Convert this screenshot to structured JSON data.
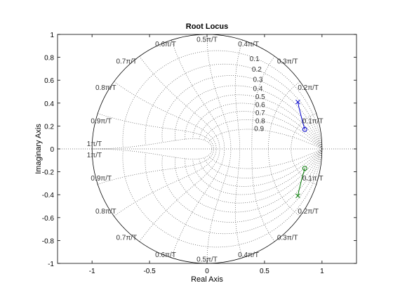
{
  "chart_data": {
    "type": "root-locus",
    "title": "Root Locus",
    "xlabel": "Real Axis",
    "ylabel": "Imaginary Axis",
    "xlim": [
      -1.3,
      1.3
    ],
    "ylim": [
      -1,
      1
    ],
    "xticks": [
      -1,
      -0.5,
      0,
      0.5,
      1
    ],
    "xtick_labels": [
      "-1",
      "-0.5",
      "0",
      "0.5",
      "1"
    ],
    "yticks": [
      -1,
      -0.8,
      -0.6,
      -0.4,
      -0.2,
      0,
      0.2,
      0.4,
      0.6,
      0.8,
      1
    ],
    "ytick_labels": [
      "-1",
      "-0.8",
      "-0.6",
      "-0.4",
      "-0.2",
      "0",
      "0.2",
      "0.4",
      "0.6",
      "0.8",
      "1"
    ],
    "grid": "zgrid",
    "zeta_values": [
      0.1,
      0.2,
      0.3,
      0.4,
      0.5,
      0.6,
      0.7,
      0.8,
      0.9
    ],
    "zeta_labels": [
      "0.1",
      "0.2",
      "0.3",
      "0.4",
      "0.5",
      "0.6",
      "0.7",
      "0.8",
      "0.9"
    ],
    "wn_labels_upper": [
      "0.1π/T",
      "0.2π/T",
      "0.3π/T",
      "0.4π/T",
      "0.5π/T",
      "0.6π/T",
      "0.7π/T",
      "0.8π/T",
      "0.9π/T",
      "1π/T"
    ],
    "wn_labels_lower": [
      "0.1π/T",
      "0.2π/T",
      "0.3π/T",
      "0.4π/T",
      "0.5π/T",
      "0.6π/T",
      "0.7π/T",
      "0.8π/T",
      "0.9π/T",
      "1π/T"
    ],
    "colors": {
      "branch_upper": "#0000cc",
      "branch_lower": "#007700",
      "grid": "#555555",
      "unit_circle": "#000000"
    },
    "poles": [
      [
        0.79,
        0.41
      ],
      [
        0.79,
        -0.41
      ]
    ],
    "zeros": [
      [
        0.85,
        0.17
      ],
      [
        0.85,
        -0.17
      ]
    ],
    "branches": [
      {
        "points": [
          [
            0.79,
            0.41
          ],
          [
            0.8,
            0.36
          ],
          [
            0.815,
            0.3
          ],
          [
            0.83,
            0.24
          ],
          [
            0.845,
            0.19
          ],
          [
            0.85,
            0.17
          ]
        ]
      },
      {
        "points": [
          [
            0.79,
            -0.41
          ],
          [
            0.8,
            -0.36
          ],
          [
            0.815,
            -0.3
          ],
          [
            0.83,
            -0.24
          ],
          [
            0.845,
            -0.19
          ],
          [
            0.85,
            -0.17
          ]
        ]
      }
    ],
    "markers": {
      "pole": "x",
      "zero": "o"
    }
  }
}
